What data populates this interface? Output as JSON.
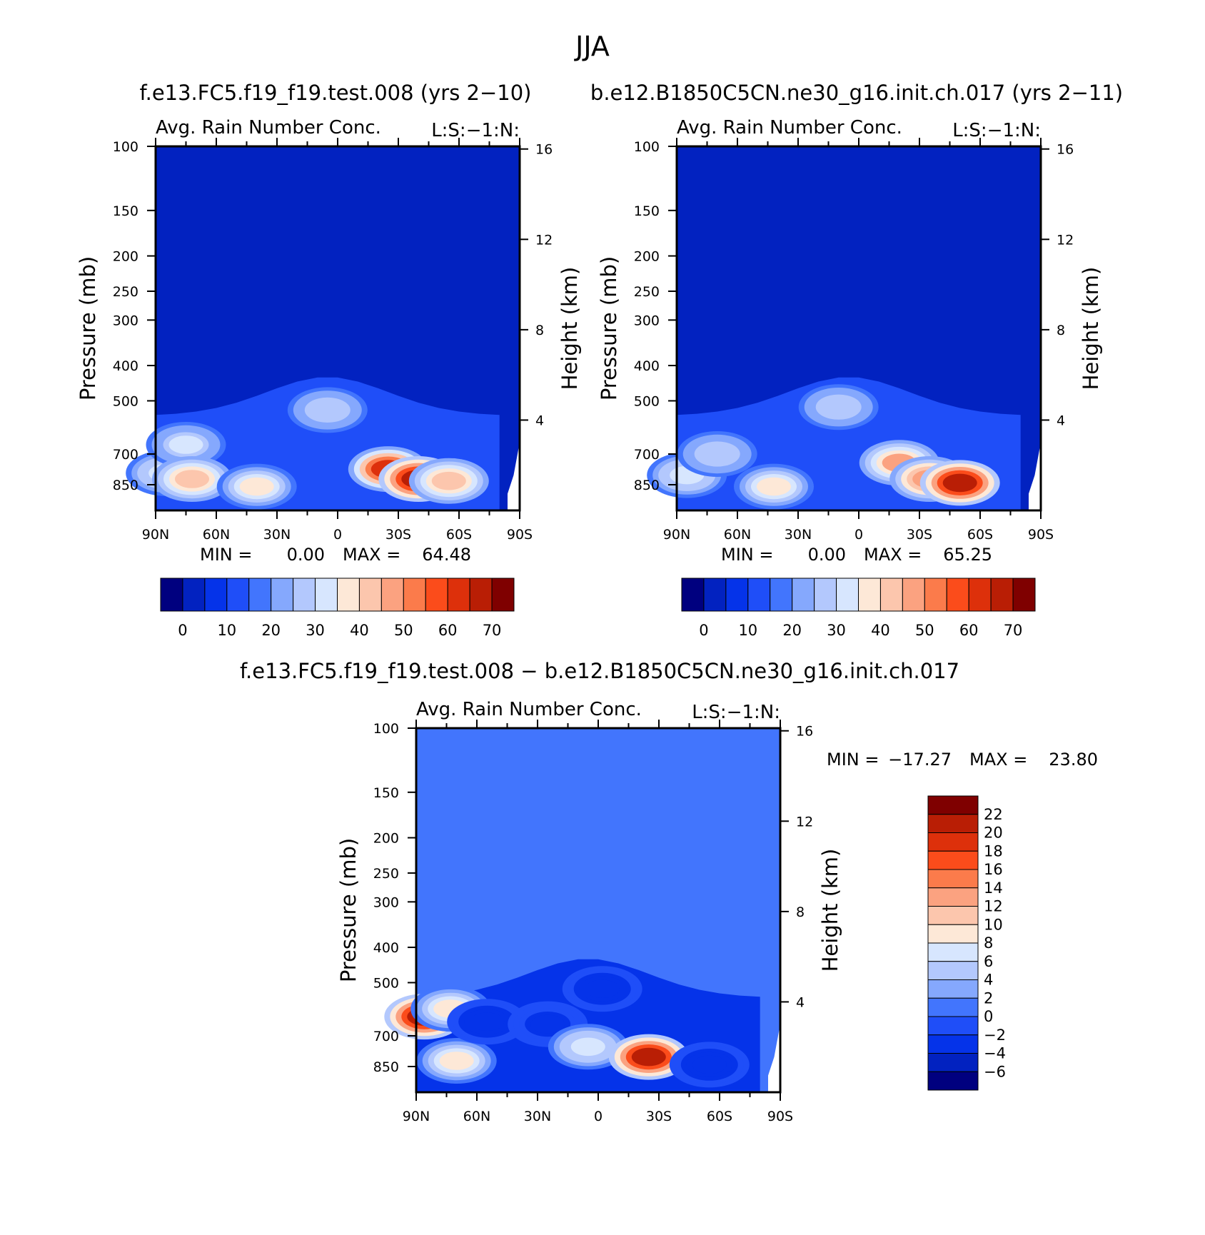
{
  "figure": {
    "season": "JJA",
    "panel_a_title": "f.e13.FC5.f19_f19.test.008 (yrs 2−10)",
    "panel_b_title": "b.e12.B1850C5CN.ne30_g16.init.ch.017 (yrs 2−11)",
    "diff_title": "f.e13.FC5.f19_f19.test.008 − b.e12.B1850C5CN.ne30_g16.init.ch.017"
  },
  "colors": {
    "background_field": "#0222c0",
    "diff_background_field": "#4275fd",
    "levels": [
      "#00007f",
      "#0222c0",
      "#0533e9",
      "#1f4ef8",
      "#4275fd",
      "#85a8fd",
      "#b3c8fd",
      "#d7e6fe",
      "#fde8d7",
      "#fcc6ad",
      "#fba280",
      "#fb7b4b",
      "#fb4c1b",
      "#dd300b",
      "#b91e05",
      "#7f0000"
    ]
  },
  "chart_data": [
    {
      "type": "heatmap",
      "title": "Avg. Rain Number Conc.",
      "subtitle": "L:S:−1:N:",
      "ylabel": "Pressure (mb)",
      "y2label": "Height (km)",
      "xlabel": "",
      "x_ticks": [
        "90N",
        "60N",
        "30N",
        "0",
        "30S",
        "60S",
        "90S"
      ],
      "y_ticks": [
        "100",
        "150",
        "200",
        "250",
        "300",
        "400",
        "500",
        "700",
        "850"
      ],
      "y2_ticks": [
        "16",
        "12",
        "8",
        "4"
      ],
      "y_range": [
        100,
        1000
      ],
      "min_label": "MIN =",
      "min_value": "0.00",
      "max_label": "MAX =",
      "max_value": "64.48",
      "colorbar_ticks": [
        "0",
        "10",
        "20",
        "30",
        "40",
        "50",
        "60",
        "70"
      ],
      "features": [
        {
          "lat": 85,
          "p": 790,
          "value": 28
        },
        {
          "lat": 75,
          "p": 660,
          "value": 26
        },
        {
          "lat": 72,
          "p": 820,
          "value": 38
        },
        {
          "lat": 40,
          "p": 860,
          "value": 34
        },
        {
          "lat": 5,
          "p": 530,
          "value": 24
        },
        {
          "lat": -25,
          "p": 770,
          "value": 55
        },
        {
          "lat": -40,
          "p": 820,
          "value": 62
        },
        {
          "lat": -55,
          "p": 830,
          "value": 35
        }
      ]
    },
    {
      "type": "heatmap",
      "title": "Avg. Rain Number Conc.",
      "subtitle": "L:S:−1:N:",
      "ylabel": "Pressure (mb)",
      "y2label": "Height (km)",
      "xlabel": "",
      "x_ticks": [
        "90N",
        "60N",
        "30N",
        "0",
        "30S",
        "60S",
        "90S"
      ],
      "y_ticks": [
        "100",
        "150",
        "200",
        "250",
        "300",
        "400",
        "500",
        "700",
        "850"
      ],
      "y2_ticks": [
        "16",
        "12",
        "8",
        "4"
      ],
      "y_range": [
        100,
        1000
      ],
      "min_label": "MIN =",
      "min_value": "0.00",
      "max_label": "MAX =",
      "max_value": "65.25",
      "colorbar_ticks": [
        "0",
        "10",
        "20",
        "30",
        "40",
        "50",
        "60",
        "70"
      ],
      "features": [
        {
          "lat": 85,
          "p": 800,
          "value": 28
        },
        {
          "lat": 70,
          "p": 700,
          "value": 24
        },
        {
          "lat": 42,
          "p": 860,
          "value": 33
        },
        {
          "lat": 10,
          "p": 520,
          "value": 24
        },
        {
          "lat": -20,
          "p": 740,
          "value": 40
        },
        {
          "lat": -35,
          "p": 820,
          "value": 44
        },
        {
          "lat": -50,
          "p": 840,
          "value": 63
        }
      ]
    },
    {
      "type": "heatmap",
      "title": "Avg. Rain Number Conc.",
      "subtitle": "L:S:−1:N:",
      "ylabel": "Pressure (mb)",
      "y2label": "Height (km)",
      "xlabel": "",
      "x_ticks": [
        "90N",
        "60N",
        "30N",
        "0",
        "30S",
        "60S",
        "90S"
      ],
      "y_ticks": [
        "100",
        "150",
        "200",
        "250",
        "300",
        "400",
        "500",
        "700",
        "850"
      ],
      "y2_ticks": [
        "16",
        "12",
        "8",
        "4"
      ],
      "y_range": [
        100,
        1000
      ],
      "min_label": "MIN =",
      "min_value": "−17.27",
      "max_label": "MAX =",
      "max_value": "23.80",
      "colorbar_ticks": [
        "22",
        "20",
        "18",
        "16",
        "14",
        "12",
        "10",
        "8",
        "6",
        "4",
        "2",
        "0",
        "−2",
        "−4",
        "−6"
      ],
      "features": [
        {
          "lat": 86,
          "p": 620,
          "value": 18
        },
        {
          "lat": 73,
          "p": 590,
          "value": 6
        },
        {
          "lat": 70,
          "p": 820,
          "value": 6
        },
        {
          "lat": 55,
          "p": 640,
          "value": -6
        },
        {
          "lat": 25,
          "p": 650,
          "value": -5
        },
        {
          "lat": -2,
          "p": 520,
          "value": -6
        },
        {
          "lat": 5,
          "p": 750,
          "value": 5
        },
        {
          "lat": -25,
          "p": 800,
          "value": 18
        },
        {
          "lat": -55,
          "p": 840,
          "value": -6
        }
      ]
    }
  ]
}
